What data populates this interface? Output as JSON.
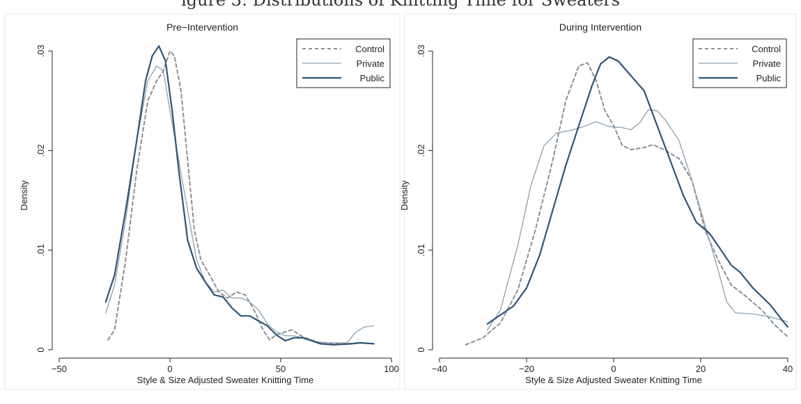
{
  "figure": {
    "cut_caption": "igure 3: Distributions of Knitting Time for Sweaters"
  },
  "legend": {
    "position": "top-right"
  },
  "chart_data": [
    {
      "type": "line",
      "title": "Pre−Intervention",
      "xlabel": "Style & Size Adjusted Sweater Knitting Time",
      "ylabel": "Density",
      "xlim": [
        -50,
        100
      ],
      "ylim": [
        0,
        0.031
      ],
      "xticks": [
        -50,
        0,
        50,
        100
      ],
      "xtick_labels": [
        "−50",
        "0",
        "50",
        "100"
      ],
      "yticks": [
        0,
        0.01,
        0.02,
        0.03
      ],
      "ytick_labels": [
        "0",
        ".01",
        ".02",
        ".03"
      ],
      "grid": false,
      "series": [
        {
          "name": "Control",
          "color": "#8a8f96",
          "dash": "5,4",
          "width": 2,
          "points": [
            [
              -28,
              0.001
            ],
            [
              -25,
              0.002
            ],
            [
              -20,
              0.009
            ],
            [
              -15,
              0.018
            ],
            [
              -10,
              0.025
            ],
            [
              -6,
              0.027
            ],
            [
              -3,
              0.028
            ],
            [
              0,
              0.03
            ],
            [
              2,
              0.0295
            ],
            [
              5,
              0.026
            ],
            [
              8,
              0.019
            ],
            [
              11,
              0.012
            ],
            [
              14,
              0.009
            ],
            [
              18,
              0.0075
            ],
            [
              22,
              0.0058
            ],
            [
              26,
              0.0052
            ],
            [
              30,
              0.0058
            ],
            [
              34,
              0.0055
            ],
            [
              38,
              0.004
            ],
            [
              42,
              0.002
            ],
            [
              45,
              0.001
            ],
            [
              48,
              0.0015
            ],
            [
              55,
              0.002
            ],
            [
              60,
              0.0013
            ],
            [
              65,
              0.0009
            ],
            [
              70,
              0.0006
            ],
            [
              80,
              0.0006
            ],
            [
              85,
              0.0007
            ],
            [
              92,
              0.0006
            ]
          ]
        },
        {
          "name": "Private",
          "color": "#8aa0b2",
          "dash": "",
          "width": 1.3,
          "points": [
            [
              -29,
              0.0037
            ],
            [
              -25,
              0.0065
            ],
            [
              -20,
              0.013
            ],
            [
              -15,
              0.021
            ],
            [
              -10,
              0.027
            ],
            [
              -6,
              0.0285
            ],
            [
              -3,
              0.028
            ],
            [
              0,
              0.024
            ],
            [
              4,
              0.019
            ],
            [
              8,
              0.014
            ],
            [
              12,
              0.009
            ],
            [
              16,
              0.0068
            ],
            [
              20,
              0.0058
            ],
            [
              24,
              0.006
            ],
            [
              28,
              0.0052
            ],
            [
              32,
              0.0052
            ],
            [
              36,
              0.0048
            ],
            [
              40,
              0.004
            ],
            [
              44,
              0.0026
            ],
            [
              48,
              0.0018
            ],
            [
              52,
              0.0014
            ],
            [
              56,
              0.0014
            ],
            [
              60,
              0.0012
            ],
            [
              66,
              0.0008
            ],
            [
              72,
              0.0007
            ],
            [
              80,
              0.0007
            ],
            [
              84,
              0.0018
            ],
            [
              88,
              0.0023
            ],
            [
              92,
              0.0024
            ]
          ]
        },
        {
          "name": "Public",
          "color": "#2f5375",
          "dash": "",
          "width": 2.2,
          "points": [
            [
              -29,
              0.0048
            ],
            [
              -25,
              0.0075
            ],
            [
              -20,
              0.014
            ],
            [
              -15,
              0.021
            ],
            [
              -11,
              0.027
            ],
            [
              -8,
              0.0295
            ],
            [
              -5,
              0.0305
            ],
            [
              -2,
              0.029
            ],
            [
              1,
              0.024
            ],
            [
              4,
              0.018
            ],
            [
              8,
              0.011
            ],
            [
              12,
              0.0082
            ],
            [
              16,
              0.0068
            ],
            [
              20,
              0.0055
            ],
            [
              24,
              0.0053
            ],
            [
              28,
              0.0042
            ],
            [
              32,
              0.0034
            ],
            [
              36,
              0.0034
            ],
            [
              40,
              0.0029
            ],
            [
              44,
              0.0024
            ],
            [
              48,
              0.0015
            ],
            [
              52,
              0.0009
            ],
            [
              56,
              0.0012
            ],
            [
              60,
              0.0012
            ],
            [
              64,
              0.0009
            ],
            [
              68,
              0.0006
            ],
            [
              74,
              0.0005
            ],
            [
              82,
              0.0006
            ],
            [
              86,
              0.0007
            ],
            [
              92,
              0.0006
            ]
          ]
        }
      ]
    },
    {
      "type": "line",
      "title": "During Intervention",
      "xlabel": "Style & Size Adjusted Sweater Knitting Time",
      "ylabel": "Density",
      "xlim": [
        -40,
        40
      ],
      "ylim": [
        0,
        0.031
      ],
      "xticks": [
        -40,
        -20,
        0,
        20,
        40
      ],
      "xtick_labels": [
        "−40",
        "−20",
        "0",
        "20",
        "40"
      ],
      "yticks": [
        0,
        0.01,
        0.02,
        0.03
      ],
      "ytick_labels": [
        "0",
        ".01",
        ".02",
        ".03"
      ],
      "grid": false,
      "series": [
        {
          "name": "Control",
          "color": "#8a8f96",
          "dash": "5,4",
          "width": 2,
          "points": [
            [
              -34,
              0.0005
            ],
            [
              -30,
              0.0012
            ],
            [
              -26,
              0.0027
            ],
            [
              -22,
              0.006
            ],
            [
              -18,
              0.012
            ],
            [
              -14,
              0.019
            ],
            [
              -11,
              0.025
            ],
            [
              -8,
              0.0285
            ],
            [
              -6,
              0.0288
            ],
            [
              -4,
              0.027
            ],
            [
              -2,
              0.024
            ],
            [
              0,
              0.0225
            ],
            [
              2,
              0.0205
            ],
            [
              4,
              0.0201
            ],
            [
              7,
              0.0203
            ],
            [
              9,
              0.0206
            ],
            [
              12,
              0.02
            ],
            [
              15,
              0.0192
            ],
            [
              18,
              0.017
            ],
            [
              21,
              0.012
            ],
            [
              24,
              0.009
            ],
            [
              27,
              0.0065
            ],
            [
              30,
              0.0055
            ],
            [
              34,
              0.004
            ],
            [
              37,
              0.0025
            ],
            [
              40,
              0.0013
            ]
          ]
        },
        {
          "name": "Private",
          "color": "#8aa0b2",
          "dash": "",
          "width": 1.3,
          "points": [
            [
              -29,
              0.002
            ],
            [
              -26,
              0.004
            ],
            [
              -22,
              0.0105
            ],
            [
              -19,
              0.0165
            ],
            [
              -16,
              0.0205
            ],
            [
              -13,
              0.0218
            ],
            [
              -10,
              0.022
            ],
            [
              -7,
              0.0224
            ],
            [
              -4,
              0.0229
            ],
            [
              -1,
              0.0224
            ],
            [
              2,
              0.0223
            ],
            [
              4,
              0.0221
            ],
            [
              6,
              0.0228
            ],
            [
              8,
              0.0241
            ],
            [
              10,
              0.024
            ],
            [
              12,
              0.023
            ],
            [
              15,
              0.021
            ],
            [
              18,
              0.017
            ],
            [
              21,
              0.0125
            ],
            [
              24,
              0.008
            ],
            [
              26,
              0.0048
            ],
            [
              28,
              0.0037
            ],
            [
              32,
              0.0036
            ],
            [
              36,
              0.0033
            ],
            [
              40,
              0.0028
            ]
          ]
        },
        {
          "name": "Public",
          "color": "#2f5375",
          "dash": "",
          "width": 2.2,
          "points": [
            [
              -29,
              0.0026
            ],
            [
              -26,
              0.0035
            ],
            [
              -23,
              0.0044
            ],
            [
              -20,
              0.0062
            ],
            [
              -17,
              0.0095
            ],
            [
              -14,
              0.014
            ],
            [
              -11,
              0.0185
            ],
            [
              -8,
              0.0225
            ],
            [
              -5,
              0.0265
            ],
            [
              -3,
              0.0287
            ],
            [
              -1,
              0.0294
            ],
            [
              1,
              0.029
            ],
            [
              3,
              0.028
            ],
            [
              5,
              0.027
            ],
            [
              7,
              0.026
            ],
            [
              10,
              0.0225
            ],
            [
              13,
              0.019
            ],
            [
              16,
              0.0155
            ],
            [
              19,
              0.0128
            ],
            [
              22,
              0.0117
            ],
            [
              25,
              0.0098
            ],
            [
              27,
              0.0085
            ],
            [
              29,
              0.0078
            ],
            [
              32,
              0.0062
            ],
            [
              36,
              0.0045
            ],
            [
              39,
              0.0028
            ],
            [
              40,
              0.0023
            ]
          ]
        }
      ]
    }
  ]
}
